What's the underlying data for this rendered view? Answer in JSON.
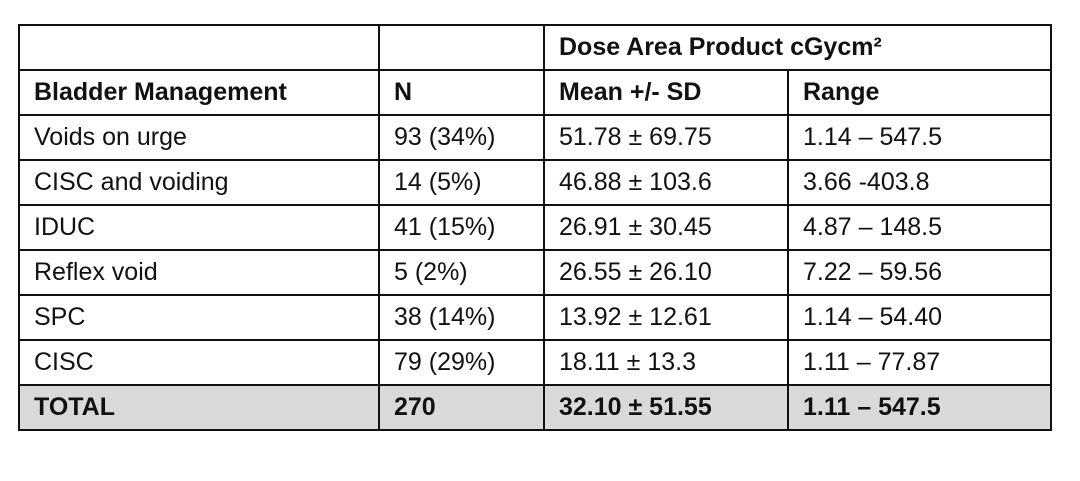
{
  "table": {
    "group_header": "Dose Area Product cGycm²",
    "columns": [
      "Bladder Management",
      "N",
      "Mean +/- SD",
      "Range"
    ],
    "rows": [
      [
        "Voids on urge",
        "93 (34%)",
        "51.78 ± 69.75",
        "1.14 – 547.5"
      ],
      [
        "CISC and voiding",
        "14 (5%)",
        "46.88 ± 103.6",
        "3.66 -403.8"
      ],
      [
        "IDUC",
        "41 (15%)",
        "26.91 ± 30.45",
        "4.87 – 148.5"
      ],
      [
        "Reflex void",
        "5 (2%)",
        "26.55 ± 26.10",
        "7.22 – 59.56"
      ],
      [
        "SPC",
        "38 (14%)",
        "13.92 ± 12.61",
        "1.14 – 54.40"
      ],
      [
        "CISC",
        "79 (29%)",
        "18.11 ± 13.3",
        "1.11 – 77.87"
      ]
    ],
    "total": [
      "TOTAL",
      "270",
      "32.10 ± 51.55",
      "1.11 – 547.5"
    ]
  }
}
